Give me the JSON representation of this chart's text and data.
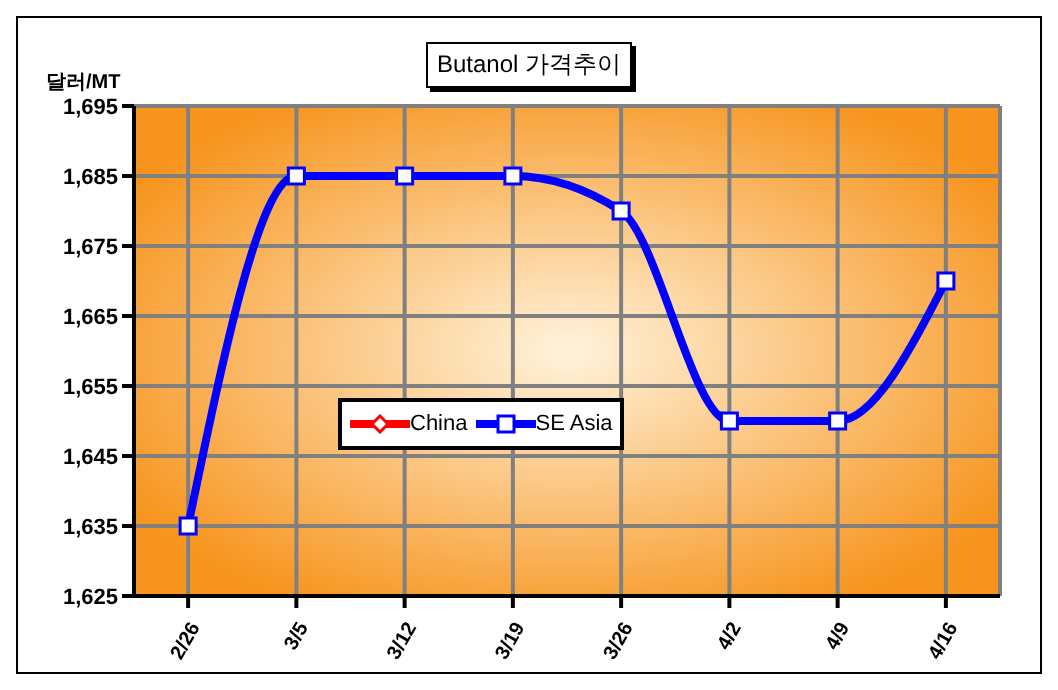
{
  "chart_data": {
    "type": "line",
    "title": "Butanol 가격추이",
    "ylabel": "달러/MT",
    "categories": [
      "2/26",
      "3/5",
      "3/12",
      "3/19",
      "3/26",
      "4/2",
      "4/9",
      "4/16"
    ],
    "series": [
      {
        "name": "China",
        "color": "#ff0000",
        "marker": "diamond",
        "values": [
          null,
          null,
          null,
          null,
          null,
          null,
          null,
          null
        ]
      },
      {
        "name": "SE Asia",
        "color": "#0000ff",
        "marker": "square",
        "values": [
          1635,
          1685,
          1685,
          1685,
          1680,
          1650,
          1650,
          1670
        ]
      }
    ],
    "ylim": [
      1625,
      1695
    ],
    "yticks": [
      {
        "value": 1625,
        "label": "1,625"
      },
      {
        "value": 1635,
        "label": "1,635"
      },
      {
        "value": 1645,
        "label": "1,645"
      },
      {
        "value": 1655,
        "label": "1,655"
      },
      {
        "value": 1665,
        "label": "1,665"
      },
      {
        "value": 1675,
        "label": "1,675"
      },
      {
        "value": 1685,
        "label": "1,685"
      },
      {
        "value": 1695,
        "label": "1,695"
      }
    ],
    "grid": true,
    "legend": "center"
  }
}
